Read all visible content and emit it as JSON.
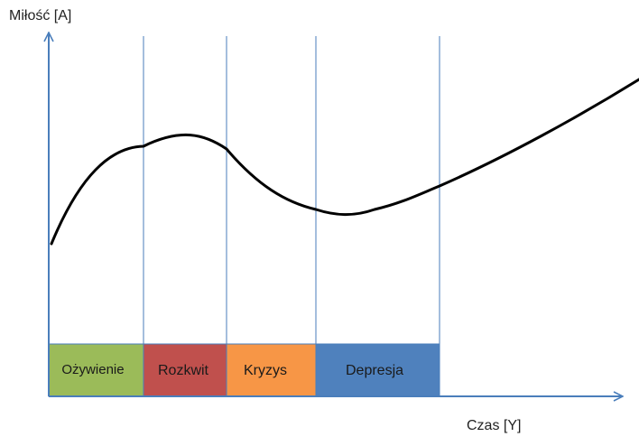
{
  "axes": {
    "y_label": "Miłość [A]",
    "x_label": "Czas [Y]",
    "axis_color": "#4a7ebb"
  },
  "curve": {
    "color": "#000000"
  },
  "phases": [
    {
      "label": "Ożywienie",
      "color": "#9bbb59"
    },
    {
      "label": "Rozkwit",
      "color": "#c0504d"
    },
    {
      "label": "Kryzys",
      "color": "#f79646"
    },
    {
      "label": "Depresja",
      "color": "#4f81bd"
    }
  ]
}
